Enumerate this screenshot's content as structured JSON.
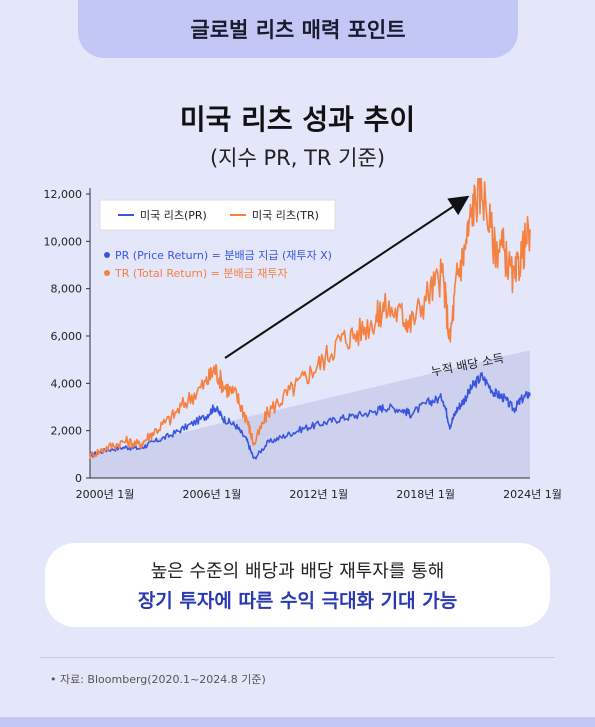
{
  "header": {
    "title": "글로벌 리츠 매력 포인트"
  },
  "chart_title": "미국 리츠 성과 추이",
  "chart_subtitle": "(지수 PR, TR 기준)",
  "chart_data": {
    "type": "line",
    "x_ticks": [
      "2000년 1월",
      "2006년 1월",
      "2012년 1월",
      "2018년 1월",
      "2024년 1월"
    ],
    "y_ticks": [
      "12,000",
      "10,000",
      "8,000",
      "6,000",
      "4,000",
      "2,000",
      "0"
    ],
    "ylim": [
      0,
      12000
    ],
    "xlim": [
      2000.0,
      2024.7
    ],
    "legend": {
      "placement": "top-left",
      "entries": [
        "미국 리츠(PR)",
        "미국 리츠(TR)"
      ],
      "notes": [
        "PR (Price Return) = 분배금 지급 (재투자 X)",
        "TR (Total Return) = 분배금 재투자"
      ]
    },
    "annotation": "누적 배당 소득",
    "series": [
      {
        "name": "미국 리츠(PR)",
        "color": "#3a56e0",
        "x": [
          2000.0,
          2001.0,
          2002.0,
          2002.8,
          2003.5,
          2004.5,
          2005.5,
          2006.5,
          2007.0,
          2007.5,
          2008.2,
          2008.8,
          2009.2,
          2010.0,
          2011.0,
          2012.0,
          2013.0,
          2014.0,
          2015.0,
          2016.0,
          2016.5,
          2017.5,
          2018.0,
          2019.0,
          2019.8,
          2020.2,
          2020.6,
          2021.0,
          2021.5,
          2022.0,
          2022.7,
          2023.2,
          2023.8,
          2024.2,
          2024.7
        ],
        "y": [
          950,
          1200,
          1300,
          1250,
          1500,
          1800,
          2200,
          2600,
          3000,
          2500,
          2200,
          1600,
          800,
          1500,
          1800,
          2100,
          2300,
          2500,
          2650,
          2800,
          3000,
          2900,
          2700,
          3200,
          3400,
          2200,
          2900,
          3300,
          3900,
          4300,
          3600,
          3400,
          2900,
          3300,
          3600
        ]
      },
      {
        "name": "미국 리츠(TR)",
        "color": "#f5803f",
        "x": [
          2000.0,
          2001.0,
          2002.0,
          2002.8,
          2003.5,
          2004.5,
          2005.5,
          2006.5,
          2007.0,
          2007.5,
          2008.2,
          2008.8,
          2009.2,
          2010.0,
          2011.0,
          2012.0,
          2013.0,
          2014.0,
          2015.0,
          2016.0,
          2016.5,
          2017.5,
          2018.0,
          2019.0,
          2019.8,
          2020.2,
          2020.6,
          2021.0,
          2021.5,
          2022.0,
          2022.7,
          2023.2,
          2023.8,
          2024.2,
          2024.7
        ],
        "y": [
          950,
          1300,
          1550,
          1400,
          1900,
          2500,
          3300,
          4000,
          4600,
          3900,
          3500,
          2500,
          1400,
          2800,
          3500,
          4200,
          4900,
          5800,
          6100,
          6700,
          7200,
          6900,
          6500,
          7800,
          8600,
          5800,
          8500,
          9500,
          11500,
          12300,
          9800,
          9700,
          8300,
          9400,
          10500
        ]
      }
    ],
    "shaded_area": {
      "x": [
        2000.0,
        2024.7
      ],
      "y_upper": [
        1000,
        5400
      ]
    }
  },
  "callout": {
    "line1": "높은 수준의 배당과 배당 재투자를 통해",
    "line2": "장기 투자에 따른 수익 극대화 기대 가능"
  },
  "source": "• 자료: Bloomberg(2020.1~2024.8 기준)"
}
